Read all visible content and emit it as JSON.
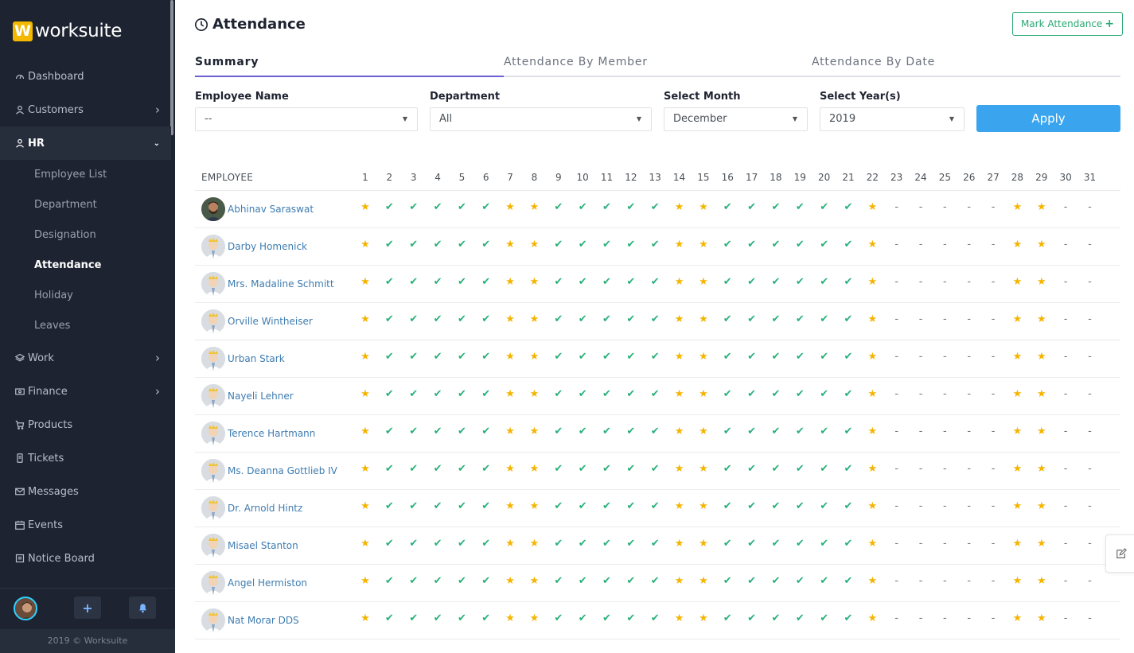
{
  "brand": {
    "mark": "W",
    "name": "worksuite"
  },
  "sidebar": {
    "items": [
      {
        "label": "Dashboard",
        "icon": "dashboard-icon",
        "chevron": false
      },
      {
        "label": "Customers",
        "icon": "user-icon",
        "chevron": true
      },
      {
        "label": "HR",
        "icon": "user-icon",
        "chevron": true,
        "expanded": true
      },
      {
        "label": "Work",
        "icon": "layers-icon",
        "chevron": true
      },
      {
        "label": "Finance",
        "icon": "money-icon",
        "chevron": true
      },
      {
        "label": "Products",
        "icon": "cart-icon",
        "chevron": false
      },
      {
        "label": "Tickets",
        "icon": "ticket-icon",
        "chevron": false
      },
      {
        "label": "Messages",
        "icon": "mail-icon",
        "chevron": false
      },
      {
        "label": "Events",
        "icon": "calendar-icon",
        "chevron": false
      },
      {
        "label": "Notice Board",
        "icon": "notice-icon",
        "chevron": false
      }
    ],
    "hr_sub": [
      "Employee List",
      "Department",
      "Designation",
      "Attendance",
      "Holiday",
      "Leaves"
    ],
    "hr_active": "Attendance",
    "footer_plus": "+",
    "copyright": "2019 © Worksuite"
  },
  "header": {
    "title": "Attendance",
    "mark_button": "Mark Attendance",
    "mark_plus": "+"
  },
  "tabs": [
    "Summary",
    "Attendance By Member",
    "Attendance By Date"
  ],
  "filters": {
    "employee": {
      "label": "Employee Name",
      "value": "--"
    },
    "department": {
      "label": "Department",
      "value": "All"
    },
    "month": {
      "label": "Select Month",
      "value": "December"
    },
    "year": {
      "label": "Select Year(s)",
      "value": "2019"
    },
    "apply": "Apply"
  },
  "table": {
    "employee_header": "EMPLOYEE",
    "days": [
      "1",
      "2",
      "3",
      "4",
      "5",
      "6",
      "7",
      "8",
      "9",
      "10",
      "11",
      "12",
      "13",
      "14",
      "15",
      "16",
      "17",
      "18",
      "19",
      "20",
      "21",
      "22",
      "23",
      "24",
      "25",
      "26",
      "27",
      "28",
      "29",
      "30",
      "31"
    ],
    "pattern": "SCCCCCSSCCCCCSSCCCCCCSDDDDDSSDD",
    "employees": [
      "Abhinav Saraswat",
      "Darby Homenick",
      "Mrs. Madaline Schmitt",
      "Orville Wintheiser",
      "Urban Stark",
      "Nayeli Lehner",
      "Terence Hartmann",
      "Ms. Deanna Gottlieb IV",
      "Dr. Arnold Hintz",
      "Misael Stanton",
      "Angel Hermiston",
      "Nat Morar DDS"
    ]
  },
  "colors": {
    "star": "#f4b400",
    "check": "#28b079",
    "accent": "#6b5fd1",
    "apply": "#3aa5ee",
    "mark": "#28a870"
  }
}
